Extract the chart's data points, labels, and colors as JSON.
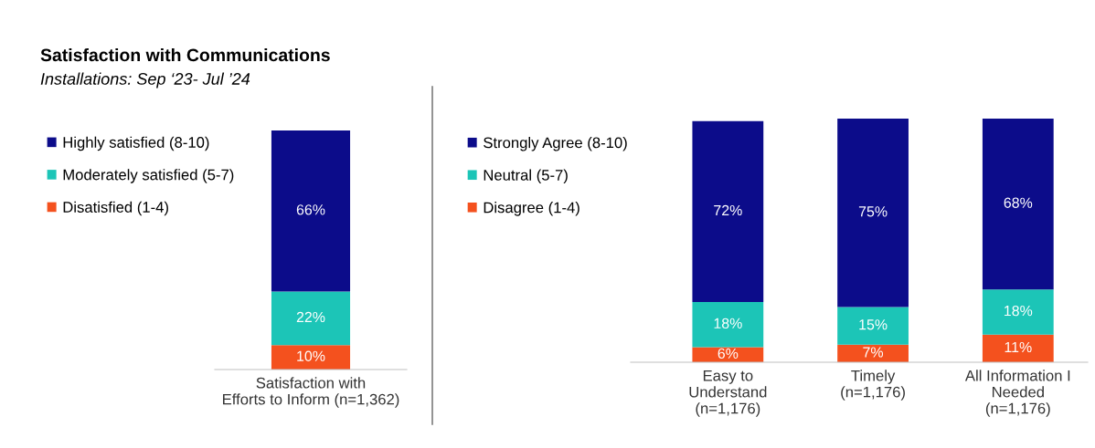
{
  "chart_data": [
    {
      "type": "bar",
      "title": "Satisfaction with Communications",
      "subtitle": "Installations: Sep ‘23- Jul ’24",
      "stacked": true,
      "legend": "left",
      "tick_labels": "x",
      "grid": false,
      "categories": [
        "Satisfaction with\nEfforts to Inform (n=1,362)"
      ],
      "series": [
        {
          "name": "Disatisfied (1-4)",
          "color": "#f4511e",
          "values": [
            10
          ],
          "value_labels": [
            "10%"
          ]
        },
        {
          "name": "Moderately satisfied (5-7)",
          "color": "#1cc5b7",
          "values": [
            22
          ],
          "value_labels": [
            "22%"
          ]
        },
        {
          "name": "Highly satisfied (8-10)",
          "color": "#0c0c8a",
          "values": [
            66
          ],
          "value_labels": [
            "66%"
          ]
        }
      ]
    },
    {
      "type": "bar",
      "stacked": true,
      "legend": "left",
      "tick_labels": "x",
      "grid": false,
      "categories": [
        "Easy to\nUnderstand\n(n=1,176)",
        "Timely\n(n=1,176)",
        "All Information I\nNeeded\n(n=1,176)"
      ],
      "series": [
        {
          "name": "Disagree (1-4)",
          "color": "#f4511e",
          "values": [
            6,
            7,
            11
          ],
          "value_labels": [
            "6%",
            "7%",
            "11%"
          ]
        },
        {
          "name": "Neutral (5-7)",
          "color": "#1cc5b7",
          "values": [
            18,
            15,
            18
          ],
          "value_labels": [
            "18%",
            "15%",
            "18%"
          ]
        },
        {
          "name": "Strongly Agree (8-10)",
          "color": "#0c0c8a",
          "values": [
            72,
            75,
            68
          ],
          "value_labels": [
            "72%",
            "75%",
            "68%"
          ]
        }
      ]
    }
  ]
}
